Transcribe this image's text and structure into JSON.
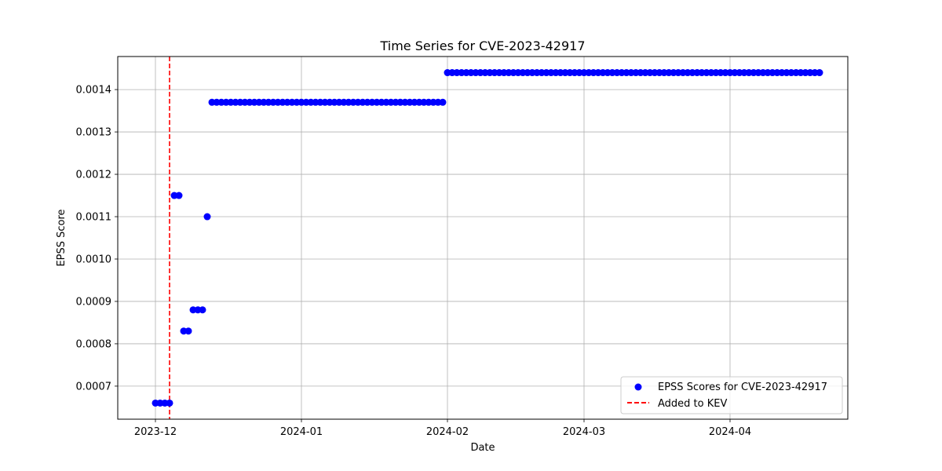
{
  "chart_data": {
    "type": "scatter",
    "title": "Time Series for CVE-2023-42917",
    "xlabel": "Date",
    "ylabel": "EPSS Score",
    "x_ticks": [
      "2023-12",
      "2024-01",
      "2024-02",
      "2024-03",
      "2024-04"
    ],
    "y_ticks": [
      "0.0007",
      "0.0008",
      "0.0009",
      "0.0010",
      "0.0011",
      "0.0012",
      "0.0013",
      "0.0014"
    ],
    "xlim": [
      "2023-11-23",
      "2024-04-26"
    ],
    "ylim": [
      0.000622,
      0.001478
    ],
    "grid": true,
    "legend_position": "lower-right",
    "series": [
      {
        "name": "EPSS Scores for CVE-2023-42917",
        "kind": "scatter",
        "color": "#0000ff",
        "segments": [
          {
            "from": "2023-12-01",
            "to": "2023-12-04",
            "value": 0.00066
          },
          {
            "from": "2023-12-05",
            "to": "2023-12-06",
            "value": 0.00115
          },
          {
            "from": "2023-12-07",
            "to": "2023-12-08",
            "value": 0.00083
          },
          {
            "from": "2023-12-09",
            "to": "2023-12-11",
            "value": 0.00088
          },
          {
            "from": "2023-12-12",
            "to": "2023-12-12",
            "value": 0.0011
          },
          {
            "from": "2023-12-13",
            "to": "2024-01-31",
            "value": 0.00137
          },
          {
            "from": "2024-02-01",
            "to": "2024-04-20",
            "value": 0.00144
          }
        ]
      },
      {
        "name": "Added to KEV",
        "kind": "vline",
        "color": "#ff0000",
        "x": "2023-12-04"
      }
    ]
  }
}
